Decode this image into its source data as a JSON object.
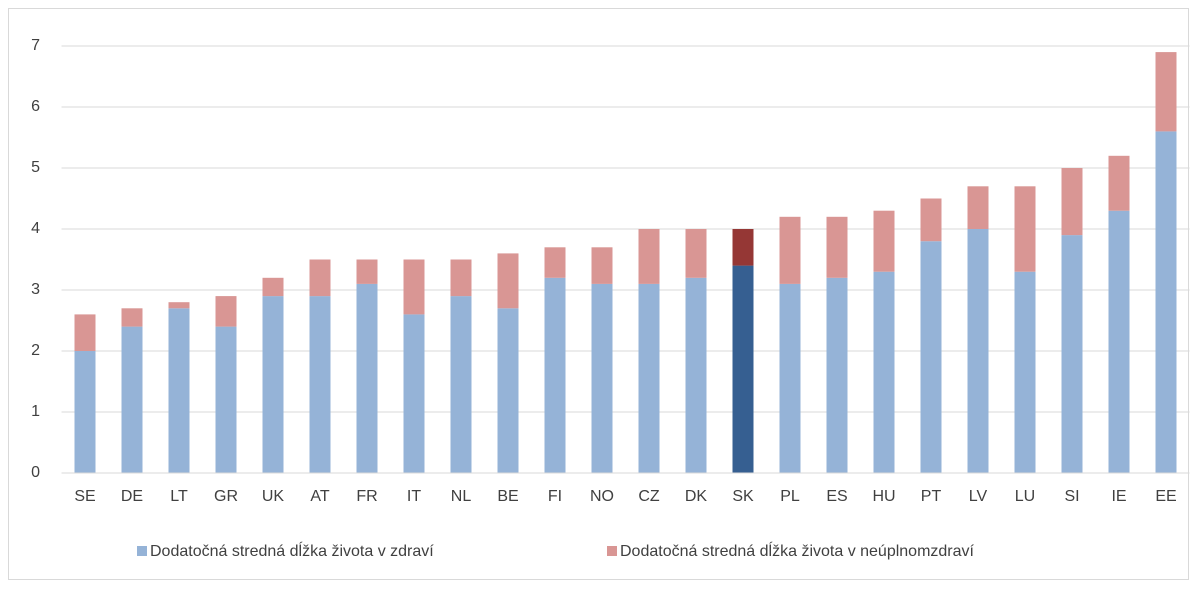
{
  "chart_data": {
    "type": "stacked_bar",
    "categories": [
      "SE",
      "DE",
      "LT",
      "GR",
      "UK",
      "AT",
      "FR",
      "IT",
      "NL",
      "BE",
      "FI",
      "NO",
      "CZ",
      "DK",
      "SK",
      "PL",
      "ES",
      "HU",
      "PT",
      "LV",
      "LU",
      "SI",
      "IE",
      "EE"
    ],
    "series": [
      {
        "name": "Dodatočná stredná dĺžka života v zdraví",
        "color": "#95b3d7",
        "colors": [
          "#95b3d7",
          "#95b3d7",
          "#95b3d7",
          "#95b3d7",
          "#95b3d7",
          "#95b3d7",
          "#95b3d7",
          "#95b3d7",
          "#95b3d7",
          "#95b3d7",
          "#95b3d7",
          "#95b3d7",
          "#95b3d7",
          "#95b3d7",
          "#365f91",
          "#95b3d7",
          "#95b3d7",
          "#95b3d7",
          "#95b3d7",
          "#95b3d7",
          "#95b3d7",
          "#95b3d7",
          "#95b3d7",
          "#95b3d7"
        ],
        "values": [
          2.0,
          2.4,
          2.7,
          2.4,
          2.9,
          2.9,
          3.1,
          2.6,
          2.9,
          2.7,
          3.2,
          3.1,
          3.1,
          3.2,
          3.4,
          3.1,
          3.2,
          3.3,
          3.8,
          4.0,
          3.3,
          3.9,
          4.3,
          5.6
        ]
      },
      {
        "name": "Dodatočná stredná dĺžka života v neúplnomzdraví",
        "color": "#d99694",
        "colors": [
          "#d99694",
          "#d99694",
          "#d99694",
          "#d99694",
          "#d99694",
          "#d99694",
          "#d99694",
          "#d99694",
          "#d99694",
          "#d99694",
          "#d99694",
          "#d99694",
          "#d99694",
          "#d99694",
          "#953735",
          "#d99694",
          "#d99694",
          "#d99694",
          "#d99694",
          "#d99694",
          "#d99694",
          "#d99694",
          "#d99694",
          "#d99694"
        ],
        "values": [
          0.6,
          0.3,
          0.1,
          0.5,
          0.3,
          0.6,
          0.4,
          0.9,
          0.6,
          0.9,
          0.5,
          0.6,
          0.9,
          0.8,
          0.6,
          1.1,
          1.0,
          1.0,
          0.7,
          0.7,
          1.4,
          1.1,
          0.9,
          1.3
        ]
      }
    ],
    "ylim": [
      0,
      7
    ],
    "yticks": [
      0,
      1,
      2,
      3,
      4,
      5,
      6,
      7
    ],
    "grid": true,
    "legend": "bottom"
  }
}
